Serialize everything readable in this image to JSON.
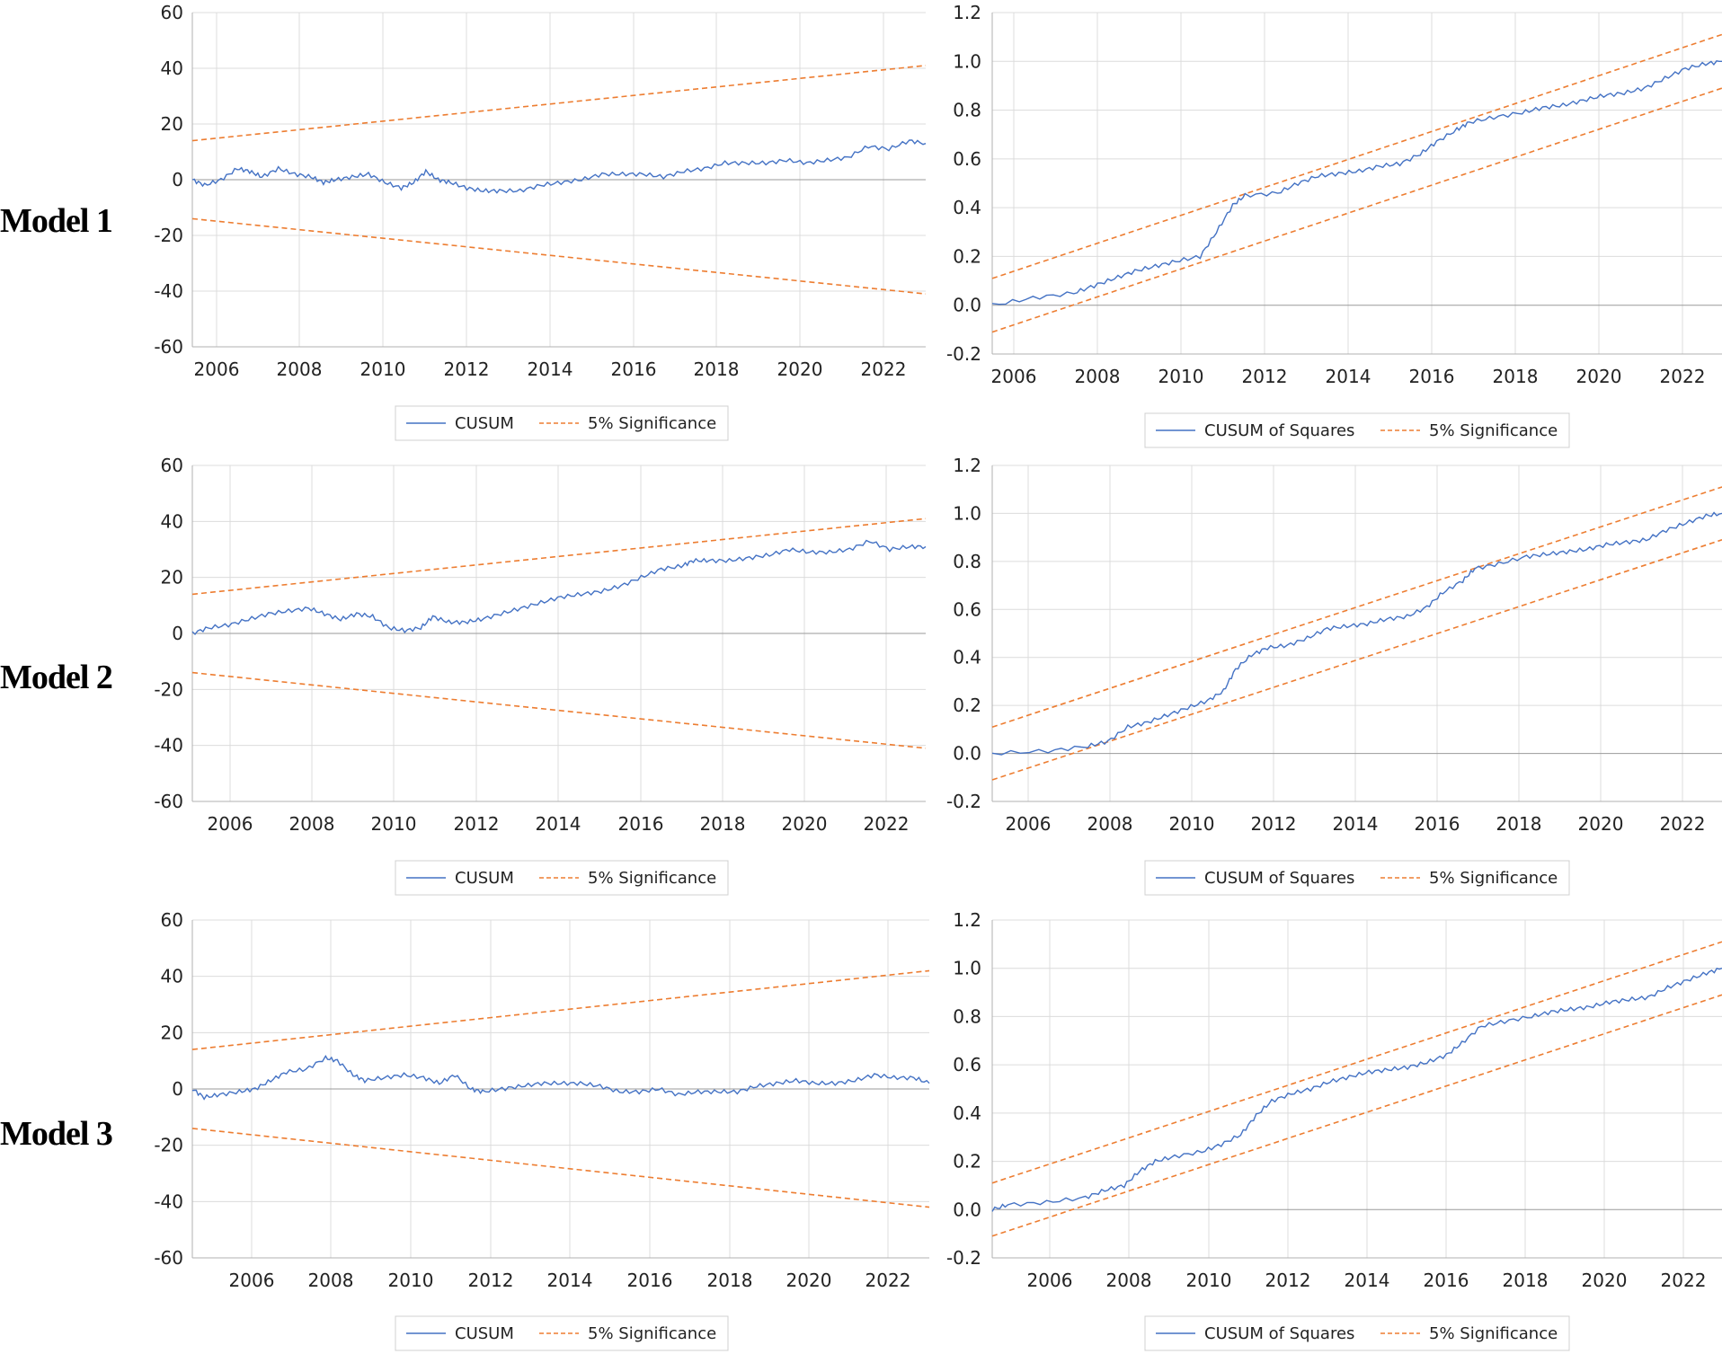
{
  "colors": {
    "main_line": "#4472C4",
    "sig_line": "#ED7D31"
  },
  "rows": [
    {
      "label": "Model 1"
    },
    {
      "label": "Model 2"
    },
    {
      "label": "Model 3"
    }
  ],
  "chart_data": [
    {
      "id": "m1-cusum",
      "type": "line",
      "model": "Model 1",
      "series_name": "CUSUM",
      "sig_name": "5% Significance",
      "x_ticks": [
        "2006",
        "2008",
        "2010",
        "2012",
        "2014",
        "2016",
        "2018",
        "2020",
        "2022"
      ],
      "y_ticks": [
        "60",
        "40",
        "20",
        "0",
        "-20",
        "-40",
        "-60"
      ],
      "ylim": [
        -60,
        60
      ],
      "xlim": [
        2005.5,
        2023.4
      ],
      "sig_upper": [
        [
          2005.5,
          14
        ],
        [
          2023.4,
          41
        ]
      ],
      "sig_lower": [
        [
          2005.5,
          -14
        ],
        [
          2023.4,
          -41
        ]
      ],
      "series": [
        [
          2005.5,
          0
        ],
        [
          2005.8,
          -2
        ],
        [
          2006.2,
          0
        ],
        [
          2006.6,
          4
        ],
        [
          2006.9,
          3
        ],
        [
          2007.2,
          1
        ],
        [
          2007.6,
          4
        ],
        [
          2008,
          2
        ],
        [
          2008.4,
          1
        ],
        [
          2008.7,
          -1
        ],
        [
          2009,
          0
        ],
        [
          2009.4,
          1
        ],
        [
          2009.8,
          2
        ],
        [
          2010.2,
          -1
        ],
        [
          2010.6,
          -3
        ],
        [
          2010.9,
          -1
        ],
        [
          2011.2,
          3
        ],
        [
          2011.5,
          0
        ],
        [
          2011.8,
          -1
        ],
        [
          2012.2,
          -3
        ],
        [
          2012.6,
          -4
        ],
        [
          2013,
          -4
        ],
        [
          2013.5,
          -4
        ],
        [
          2014,
          -2
        ],
        [
          2014.5,
          -1
        ],
        [
          2015,
          0
        ],
        [
          2015.5,
          2
        ],
        [
          2016,
          2
        ],
        [
          2016.5,
          2
        ],
        [
          2017,
          1
        ],
        [
          2017.5,
          3
        ],
        [
          2018,
          4
        ],
        [
          2018.5,
          6
        ],
        [
          2019,
          6
        ],
        [
          2019.5,
          6
        ],
        [
          2020,
          7
        ],
        [
          2020.5,
          6
        ],
        [
          2021,
          7
        ],
        [
          2021.5,
          8
        ],
        [
          2022,
          12
        ],
        [
          2022.5,
          11
        ],
        [
          2023,
          14
        ],
        [
          2023.4,
          13
        ]
      ]
    },
    {
      "id": "m1-cusumsq",
      "type": "line",
      "model": "Model 1",
      "series_name": "CUSUM of Squares",
      "sig_name": "5% Significance",
      "x_ticks": [
        "2006",
        "2008",
        "2010",
        "2012",
        "2014",
        "2016",
        "2018",
        "2020",
        "2022"
      ],
      "y_ticks": [
        "1.2",
        "1.0",
        "0.8",
        "0.6",
        "0.4",
        "0.2",
        "0.0",
        "-0.2"
      ],
      "ylim": [
        -0.2,
        1.2
      ],
      "xlim": [
        2005.5,
        2023.4
      ],
      "sig_upper": [
        [
          2005.5,
          0.11
        ],
        [
          2023.4,
          1.11
        ]
      ],
      "sig_lower": [
        [
          2005.5,
          -0.11
        ],
        [
          2023.4,
          0.89
        ]
      ],
      "series": [
        [
          2005.5,
          0
        ],
        [
          2006.5,
          0.03
        ],
        [
          2007.5,
          0.05
        ],
        [
          2008,
          0.08
        ],
        [
          2008.5,
          0.11
        ],
        [
          2009,
          0.14
        ],
        [
          2009.5,
          0.16
        ],
        [
          2010,
          0.18
        ],
        [
          2010.6,
          0.2
        ],
        [
          2011,
          0.3
        ],
        [
          2011.4,
          0.41
        ],
        [
          2011.7,
          0.45
        ],
        [
          2012.5,
          0.46
        ],
        [
          2013,
          0.5
        ],
        [
          2013.5,
          0.53
        ],
        [
          2014,
          0.54
        ],
        [
          2014.5,
          0.55
        ],
        [
          2015,
          0.57
        ],
        [
          2015.5,
          0.58
        ],
        [
          2016,
          0.62
        ],
        [
          2016.4,
          0.67
        ],
        [
          2016.9,
          0.72
        ],
        [
          2017.2,
          0.75
        ],
        [
          2017.8,
          0.77
        ],
        [
          2018.5,
          0.79
        ],
        [
          2019,
          0.81
        ],
        [
          2019.5,
          0.82
        ],
        [
          2020,
          0.84
        ],
        [
          2020.5,
          0.86
        ],
        [
          2021,
          0.87
        ],
        [
          2021.5,
          0.89
        ],
        [
          2022,
          0.93
        ],
        [
          2022.5,
          0.97
        ],
        [
          2023,
          0.99
        ],
        [
          2023.4,
          1.0
        ]
      ]
    },
    {
      "id": "m2-cusum",
      "type": "line",
      "model": "Model 2",
      "series_name": "CUSUM",
      "sig_name": "5% Significance",
      "x_ticks": [
        "2006",
        "2008",
        "2010",
        "2012",
        "2014",
        "2016",
        "2018",
        "2020",
        "2022"
      ],
      "y_ticks": [
        "60",
        "40",
        "20",
        "0",
        "-20",
        "-40",
        "-60"
      ],
      "ylim": [
        -60,
        60
      ],
      "xlim": [
        2005.1,
        2023.4
      ],
      "sig_upper": [
        [
          2005.1,
          14
        ],
        [
          2023.4,
          41
        ]
      ],
      "sig_lower": [
        [
          2005.1,
          -14
        ],
        [
          2023.4,
          -41
        ]
      ],
      "series": [
        [
          2005.1,
          0
        ],
        [
          2005.5,
          2
        ],
        [
          2006,
          3
        ],
        [
          2006.5,
          5
        ],
        [
          2007,
          7
        ],
        [
          2007.5,
          8
        ],
        [
          2008,
          9
        ],
        [
          2008.4,
          7
        ],
        [
          2008.8,
          5
        ],
        [
          2009.2,
          7
        ],
        [
          2009.6,
          6
        ],
        [
          2010,
          2
        ],
        [
          2010.4,
          1
        ],
        [
          2010.8,
          2
        ],
        [
          2011.1,
          6
        ],
        [
          2011.5,
          4
        ],
        [
          2011.9,
          4
        ],
        [
          2012.3,
          5
        ],
        [
          2012.8,
          7
        ],
        [
          2013.3,
          9
        ],
        [
          2013.8,
          11
        ],
        [
          2014.3,
          13
        ],
        [
          2014.8,
          14
        ],
        [
          2015.3,
          15
        ],
        [
          2015.8,
          17
        ],
        [
          2016.3,
          20
        ],
        [
          2016.8,
          23
        ],
        [
          2017.3,
          24
        ],
        [
          2017.6,
          26
        ],
        [
          2018,
          26
        ],
        [
          2018.5,
          26
        ],
        [
          2019,
          27
        ],
        [
          2019.5,
          28
        ],
        [
          2020,
          30
        ],
        [
          2020.5,
          29
        ],
        [
          2021,
          29
        ],
        [
          2021.5,
          30
        ],
        [
          2022,
          33
        ],
        [
          2022.5,
          30
        ],
        [
          2023,
          31
        ],
        [
          2023.4,
          31
        ]
      ]
    },
    {
      "id": "m2-cusumsq",
      "type": "line",
      "model": "Model 2",
      "series_name": "CUSUM of Squares",
      "sig_name": "5% Significance",
      "x_ticks": [
        "2006",
        "2008",
        "2010",
        "2012",
        "2014",
        "2016",
        "2018",
        "2020",
        "2022"
      ],
      "y_ticks": [
        "1.2",
        "1.0",
        "0.8",
        "0.6",
        "0.4",
        "0.2",
        "0.0",
        "-0.2"
      ],
      "ylim": [
        -0.2,
        1.2
      ],
      "xlim": [
        2005.1,
        2023.4
      ],
      "sig_upper": [
        [
          2005.1,
          0.11
        ],
        [
          2023.4,
          1.11
        ]
      ],
      "sig_lower": [
        [
          2005.1,
          -0.11
        ],
        [
          2023.4,
          0.89
        ]
      ],
      "series": [
        [
          2005.1,
          0
        ],
        [
          2006.5,
          0.01
        ],
        [
          2007.5,
          0.03
        ],
        [
          2008,
          0.05
        ],
        [
          2008.5,
          0.11
        ],
        [
          2009,
          0.13
        ],
        [
          2009.5,
          0.16
        ],
        [
          2010,
          0.19
        ],
        [
          2010.5,
          0.22
        ],
        [
          2010.9,
          0.26
        ],
        [
          2011.2,
          0.35
        ],
        [
          2011.6,
          0.41
        ],
        [
          2012,
          0.44
        ],
        [
          2012.5,
          0.45
        ],
        [
          2013,
          0.48
        ],
        [
          2013.5,
          0.52
        ],
        [
          2014,
          0.53
        ],
        [
          2014.5,
          0.54
        ],
        [
          2015,
          0.56
        ],
        [
          2015.5,
          0.57
        ],
        [
          2016,
          0.61
        ],
        [
          2016.4,
          0.67
        ],
        [
          2016.9,
          0.72
        ],
        [
          2017.2,
          0.77
        ],
        [
          2017.8,
          0.79
        ],
        [
          2018.5,
          0.82
        ],
        [
          2019,
          0.83
        ],
        [
          2019.5,
          0.84
        ],
        [
          2020,
          0.85
        ],
        [
          2020.5,
          0.87
        ],
        [
          2021,
          0.88
        ],
        [
          2021.5,
          0.89
        ],
        [
          2022,
          0.93
        ],
        [
          2022.5,
          0.96
        ],
        [
          2023,
          0.99
        ],
        [
          2023.4,
          1.0
        ]
      ]
    },
    {
      "id": "m3-cusum",
      "type": "line",
      "model": "Model 3",
      "series_name": "CUSUM",
      "sig_name": "5% Significance",
      "x_ticks": [
        "2006",
        "2008",
        "2010",
        "2012",
        "2014",
        "2016",
        "2018",
        "2020",
        "2022"
      ],
      "y_ticks": [
        "60",
        "40",
        "20",
        "0",
        "-20",
        "-40",
        "-60"
      ],
      "ylim": [
        -60,
        60
      ],
      "xlim": [
        2004.6,
        2023.4
      ],
      "sig_upper": [
        [
          2004.6,
          14
        ],
        [
          2023.4,
          42
        ]
      ],
      "sig_lower": [
        [
          2004.6,
          -14
        ],
        [
          2023.4,
          -42
        ]
      ],
      "series": [
        [
          2004.6,
          0
        ],
        [
          2004.9,
          -3
        ],
        [
          2005.3,
          -2
        ],
        [
          2005.8,
          -1
        ],
        [
          2006.2,
          0
        ],
        [
          2006.6,
          3
        ],
        [
          2007,
          6
        ],
        [
          2007.5,
          7
        ],
        [
          2008,
          11
        ],
        [
          2008.3,
          10
        ],
        [
          2008.7,
          5
        ],
        [
          2009,
          3
        ],
        [
          2009.5,
          4
        ],
        [
          2010,
          5
        ],
        [
          2010.5,
          4
        ],
        [
          2010.9,
          2
        ],
        [
          2011.3,
          5
        ],
        [
          2011.7,
          0
        ],
        [
          2012,
          -1
        ],
        [
          2012.5,
          0
        ],
        [
          2013,
          1
        ],
        [
          2013.5,
          2
        ],
        [
          2014,
          2
        ],
        [
          2014.5,
          2
        ],
        [
          2015,
          1
        ],
        [
          2015.5,
          -1
        ],
        [
          2016,
          -1
        ],
        [
          2016.5,
          0
        ],
        [
          2017,
          -2
        ],
        [
          2017.5,
          -1
        ],
        [
          2018,
          -1
        ],
        [
          2018.5,
          -1
        ],
        [
          2019,
          1
        ],
        [
          2019.5,
          2
        ],
        [
          2020,
          3
        ],
        [
          2020.5,
          2
        ],
        [
          2021,
          2
        ],
        [
          2021.5,
          3
        ],
        [
          2022,
          5
        ],
        [
          2022.5,
          4
        ],
        [
          2023,
          4
        ],
        [
          2023.4,
          2
        ]
      ]
    },
    {
      "id": "m3-cusumsq",
      "type": "line",
      "model": "Model 3",
      "series_name": "CUSUM of Squares",
      "sig_name": "5% Significance",
      "x_ticks": [
        "2006",
        "2008",
        "2010",
        "2012",
        "2014",
        "2016",
        "2018",
        "2020",
        "2022"
      ],
      "y_ticks": [
        "1.2",
        "1.0",
        "0.8",
        "0.6",
        "0.4",
        "0.2",
        "0.0",
        "-0.2"
      ],
      "ylim": [
        -0.2,
        1.2
      ],
      "xlim": [
        2004.6,
        2023.4
      ],
      "sig_upper": [
        [
          2004.6,
          0.11
        ],
        [
          2023.4,
          1.11
        ]
      ],
      "sig_lower": [
        [
          2004.6,
          -0.11
        ],
        [
          2023.4,
          0.89
        ]
      ],
      "series": [
        [
          2004.6,
          0
        ],
        [
          2005,
          0.02
        ],
        [
          2006,
          0.03
        ],
        [
          2007,
          0.05
        ],
        [
          2007.5,
          0.08
        ],
        [
          2008,
          0.1
        ],
        [
          2008.4,
          0.16
        ],
        [
          2008.8,
          0.2
        ],
        [
          2009.3,
          0.22
        ],
        [
          2010,
          0.24
        ],
        [
          2010.5,
          0.27
        ],
        [
          2011,
          0.31
        ],
        [
          2011.4,
          0.39
        ],
        [
          2011.8,
          0.45
        ],
        [
          2012.3,
          0.48
        ],
        [
          2012.8,
          0.5
        ],
        [
          2013.3,
          0.53
        ],
        [
          2013.8,
          0.55
        ],
        [
          2014.3,
          0.57
        ],
        [
          2014.8,
          0.58
        ],
        [
          2015.3,
          0.59
        ],
        [
          2015.8,
          0.61
        ],
        [
          2016.3,
          0.64
        ],
        [
          2016.7,
          0.69
        ],
        [
          2017.2,
          0.76
        ],
        [
          2017.8,
          0.78
        ],
        [
          2018.5,
          0.8
        ],
        [
          2019,
          0.82
        ],
        [
          2019.5,
          0.83
        ],
        [
          2020,
          0.84
        ],
        [
          2020.5,
          0.86
        ],
        [
          2021,
          0.87
        ],
        [
          2021.5,
          0.88
        ],
        [
          2022,
          0.92
        ],
        [
          2022.5,
          0.95
        ],
        [
          2023,
          0.98
        ],
        [
          2023.4,
          1.0
        ]
      ]
    }
  ]
}
